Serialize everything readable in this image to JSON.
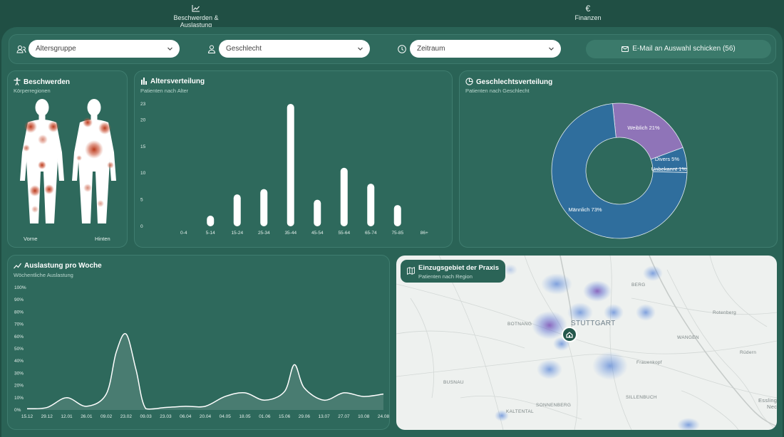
{
  "nav": {
    "tabs": [
      {
        "label": "Beschwerden & Auslastung",
        "icon": "chart-line-icon",
        "active": true
      },
      {
        "label": "Finanzen",
        "icon": "euro-icon",
        "active": false
      }
    ]
  },
  "filters": {
    "age": {
      "placeholder": "Altersgruppe",
      "icon": "users-icon"
    },
    "gender": {
      "placeholder": "Geschlecht",
      "icon": "user-icon"
    },
    "period": {
      "placeholder": "Zeitraum",
      "icon": "clock-icon"
    },
    "email_button": "E-Mail an Auswahl schicken (56)"
  },
  "complaints": {
    "title": "Beschwerden",
    "subtitle": "Körperregionen",
    "front_label": "Vorne",
    "back_label": "Hinten"
  },
  "age_chart": {
    "title": "Altersverteilung",
    "subtitle": "Patienten nach Alter",
    "chart_data": {
      "type": "bar",
      "categories": [
        "0-4",
        "5-14",
        "15-24",
        "25-34",
        "35-44",
        "45-54",
        "55-64",
        "65-74",
        "75-85",
        "86+"
      ],
      "values": [
        0,
        2,
        6,
        7,
        23,
        5,
        11,
        8,
        4,
        0
      ],
      "yticks": [
        0,
        5,
        10,
        15,
        20,
        23
      ],
      "ylim": [
        0,
        23
      ],
      "color": "#ffffff"
    }
  },
  "gender_chart": {
    "title": "Geschlechtsverteilung",
    "subtitle": "Patienten nach Geschlecht",
    "chart_data": {
      "type": "pie",
      "labels": [
        "Männlich 73%",
        "Weiblich 21%",
        "Divers 5%",
        "Unbekannt 1%"
      ],
      "values": [
        73,
        21,
        5,
        1
      ],
      "colors": [
        "#2f6e9d",
        "#8f74b8",
        "#2f6e9d",
        "#2f6e9d"
      ]
    }
  },
  "load_chart": {
    "title": "Auslastung pro Woche",
    "subtitle": "Wöchentliche Auslastung",
    "chart_data": {
      "type": "area",
      "categories": [
        "15.12",
        "29.12",
        "12.01",
        "26.01",
        "09.02",
        "23.02",
        "09.03",
        "23.03",
        "06.04",
        "20.04",
        "04.05",
        "18.05",
        "01.06",
        "15.06",
        "29.06",
        "13.07",
        "27.07",
        "10.08",
        "24.08"
      ],
      "yticks": [
        "0%",
        "10%",
        "20%",
        "30%",
        "40%",
        "50%",
        "60%",
        "70%",
        "80%",
        "90%",
        "100%"
      ],
      "ylim": [
        0,
        100
      ],
      "x": [
        0,
        1,
        2,
        3,
        4,
        4.5,
        5,
        5.5,
        6,
        7,
        8,
        9,
        10,
        11,
        12,
        13,
        13.5,
        14,
        15,
        16,
        17,
        18
      ],
      "values": [
        1,
        2,
        10,
        3,
        13,
        47,
        62,
        33,
        1,
        2,
        3,
        3,
        11,
        14,
        8,
        15,
        37,
        18,
        8,
        14,
        11,
        13
      ]
    }
  },
  "map": {
    "title": "Einzugsgebiet der Praxis",
    "subtitle": "Patienten nach Region",
    "labels": [
      "STUTTGART",
      "BOTNANG",
      "BERG",
      "Rotenberg",
      "WANGEN",
      "Frauenkopf",
      "Rüdern",
      "BUSNAU",
      "SILLENBUCH",
      "SONNENBERG",
      "KALTENTAL",
      "Essling",
      "Nec"
    ]
  }
}
